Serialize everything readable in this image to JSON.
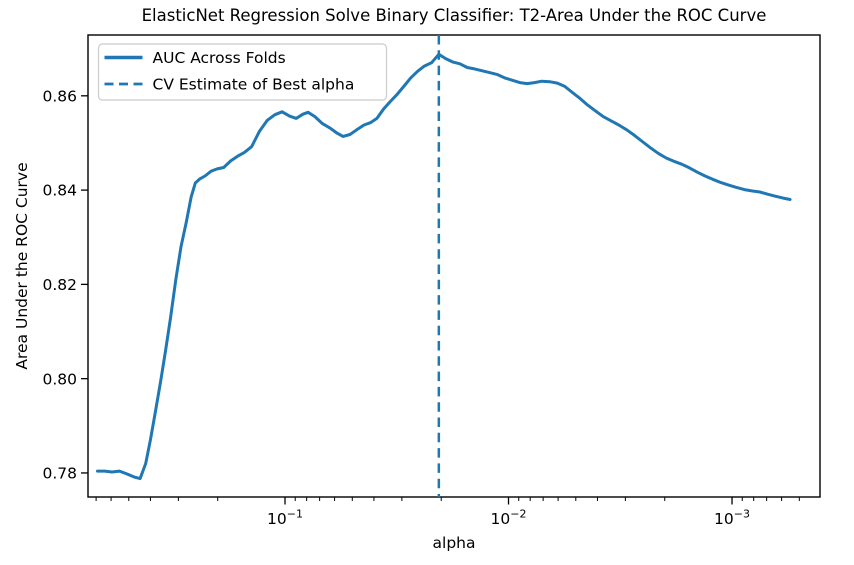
{
  "colors": {
    "line": "#1f77b4",
    "text": "#000000",
    "spine": "#000000",
    "legend_border": "#cccccc",
    "background": "#ffffff"
  },
  "legend": {
    "position": "upper left",
    "items": [
      {
        "label": "AUC Across Folds",
        "line_style": "solid"
      },
      {
        "label": "CV Estimate of Best alpha",
        "line_style": "dashed"
      }
    ]
  },
  "chart_data": {
    "type": "line",
    "title": "ElasticNet Regression Solve Binary Classifier: T2-Area Under the ROC Curve",
    "xlabel": "alpha",
    "ylabel": "Area Under the ROC Curve",
    "x_scale": "log",
    "x_axis_inverted": true,
    "grid": false,
    "xlim": [
      0.761,
      0.000404
    ],
    "ylim": [
      0.7749,
      0.8729
    ],
    "x_major_ticks": [
      {
        "value": 0.1,
        "label_base": "10",
        "label_exponent": "−1"
      },
      {
        "value": 0.01,
        "label_base": "10",
        "label_exponent": "−2"
      },
      {
        "value": 0.001,
        "label_base": "10",
        "label_exponent": "−3"
      }
    ],
    "y_ticks": [
      {
        "value": 0.78,
        "label": "0.78"
      },
      {
        "value": 0.8,
        "label": "0.80"
      },
      {
        "value": 0.82,
        "label": "0.82"
      },
      {
        "value": 0.84,
        "label": "0.84"
      },
      {
        "value": 0.86,
        "label": "0.86"
      }
    ],
    "best_alpha": 0.0205,
    "series": [
      {
        "name": "AUC Across Folds",
        "type": "line",
        "style": "solid",
        "color": "#1f77b4",
        "points": [
          [
            0.69,
            0.7804
          ],
          [
            0.64,
            0.7804
          ],
          [
            0.595,
            0.7802
          ],
          [
            0.55,
            0.7804
          ],
          [
            0.51,
            0.7798
          ],
          [
            0.47,
            0.7791
          ],
          [
            0.445,
            0.7788
          ],
          [
            0.42,
            0.782
          ],
          [
            0.4,
            0.787
          ],
          [
            0.38,
            0.793
          ],
          [
            0.36,
            0.7995
          ],
          [
            0.342,
            0.806
          ],
          [
            0.325,
            0.813
          ],
          [
            0.308,
            0.821
          ],
          [
            0.292,
            0.828
          ],
          [
            0.277,
            0.833
          ],
          [
            0.263,
            0.8385
          ],
          [
            0.252,
            0.8415
          ],
          [
            0.24,
            0.8424
          ],
          [
            0.228,
            0.843
          ],
          [
            0.214,
            0.844
          ],
          [
            0.201,
            0.8445
          ],
          [
            0.188,
            0.8448
          ],
          [
            0.175,
            0.8462
          ],
          [
            0.163,
            0.8472
          ],
          [
            0.152,
            0.848
          ],
          [
            0.141,
            0.8492
          ],
          [
            0.13,
            0.8525
          ],
          [
            0.12,
            0.8548
          ],
          [
            0.111,
            0.856
          ],
          [
            0.103,
            0.8566
          ],
          [
            0.0955,
            0.8557
          ],
          [
            0.089,
            0.8552
          ],
          [
            0.0832,
            0.8561
          ],
          [
            0.0788,
            0.8565
          ],
          [
            0.0735,
            0.8556
          ],
          [
            0.068,
            0.8541
          ],
          [
            0.063,
            0.8532
          ],
          [
            0.0585,
            0.8521
          ],
          [
            0.055,
            0.8514
          ],
          [
            0.0512,
            0.8518
          ],
          [
            0.0478,
            0.8528
          ],
          [
            0.0443,
            0.8538
          ],
          [
            0.0415,
            0.8543
          ],
          [
            0.0388,
            0.8552
          ],
          [
            0.0362,
            0.8572
          ],
          [
            0.0338,
            0.8588
          ],
          [
            0.0315,
            0.8603
          ],
          [
            0.0294,
            0.862
          ],
          [
            0.0274,
            0.8638
          ],
          [
            0.0255,
            0.8652
          ],
          [
            0.0238,
            0.8663
          ],
          [
            0.0221,
            0.867
          ],
          [
            0.0205,
            0.8688
          ],
          [
            0.0191,
            0.8679
          ],
          [
            0.0178,
            0.8672
          ],
          [
            0.0165,
            0.8668
          ],
          [
            0.0153,
            0.866
          ],
          [
            0.0142,
            0.8657
          ],
          [
            0.0131,
            0.8653
          ],
          [
            0.0121,
            0.8649
          ],
          [
            0.0112,
            0.8645
          ],
          [
            0.0104,
            0.8638
          ],
          [
            0.0096,
            0.8633
          ],
          [
            0.0089,
            0.8628
          ],
          [
            0.00825,
            0.8626
          ],
          [
            0.00765,
            0.8628
          ],
          [
            0.0071,
            0.8631
          ],
          [
            0.00655,
            0.863
          ],
          [
            0.00605,
            0.8627
          ],
          [
            0.0056,
            0.862
          ],
          [
            0.00518,
            0.8607
          ],
          [
            0.00478,
            0.8594
          ],
          [
            0.00442,
            0.858
          ],
          [
            0.00408,
            0.8568
          ],
          [
            0.00377,
            0.8556
          ],
          [
            0.00348,
            0.8547
          ],
          [
            0.00321,
            0.8538
          ],
          [
            0.00296,
            0.8528
          ],
          [
            0.00273,
            0.8516
          ],
          [
            0.00252,
            0.8503
          ],
          [
            0.00232,
            0.849
          ],
          [
            0.00214,
            0.8478
          ],
          [
            0.00197,
            0.8468
          ],
          [
            0.00182,
            0.8461
          ],
          [
            0.00168,
            0.8455
          ],
          [
            0.00155,
            0.8447
          ],
          [
            0.00143,
            0.8438
          ],
          [
            0.00132,
            0.843
          ],
          [
            0.00122,
            0.8423
          ],
          [
            0.00112,
            0.8416
          ],
          [
            0.00104,
            0.8411
          ],
          [
            0.00096,
            0.8406
          ],
          [
            0.00088,
            0.8401
          ],
          [
            0.00081,
            0.8398
          ],
          [
            0.00075,
            0.8396
          ],
          [
            0.00069,
            0.8391
          ],
          [
            0.00064,
            0.8387
          ],
          [
            0.00059,
            0.8383
          ],
          [
            0.00055,
            0.838
          ]
        ]
      },
      {
        "name": "CV Estimate of Best alpha",
        "type": "vline",
        "style": "dashed",
        "color": "#1f77b4",
        "x": 0.0205
      }
    ]
  }
}
